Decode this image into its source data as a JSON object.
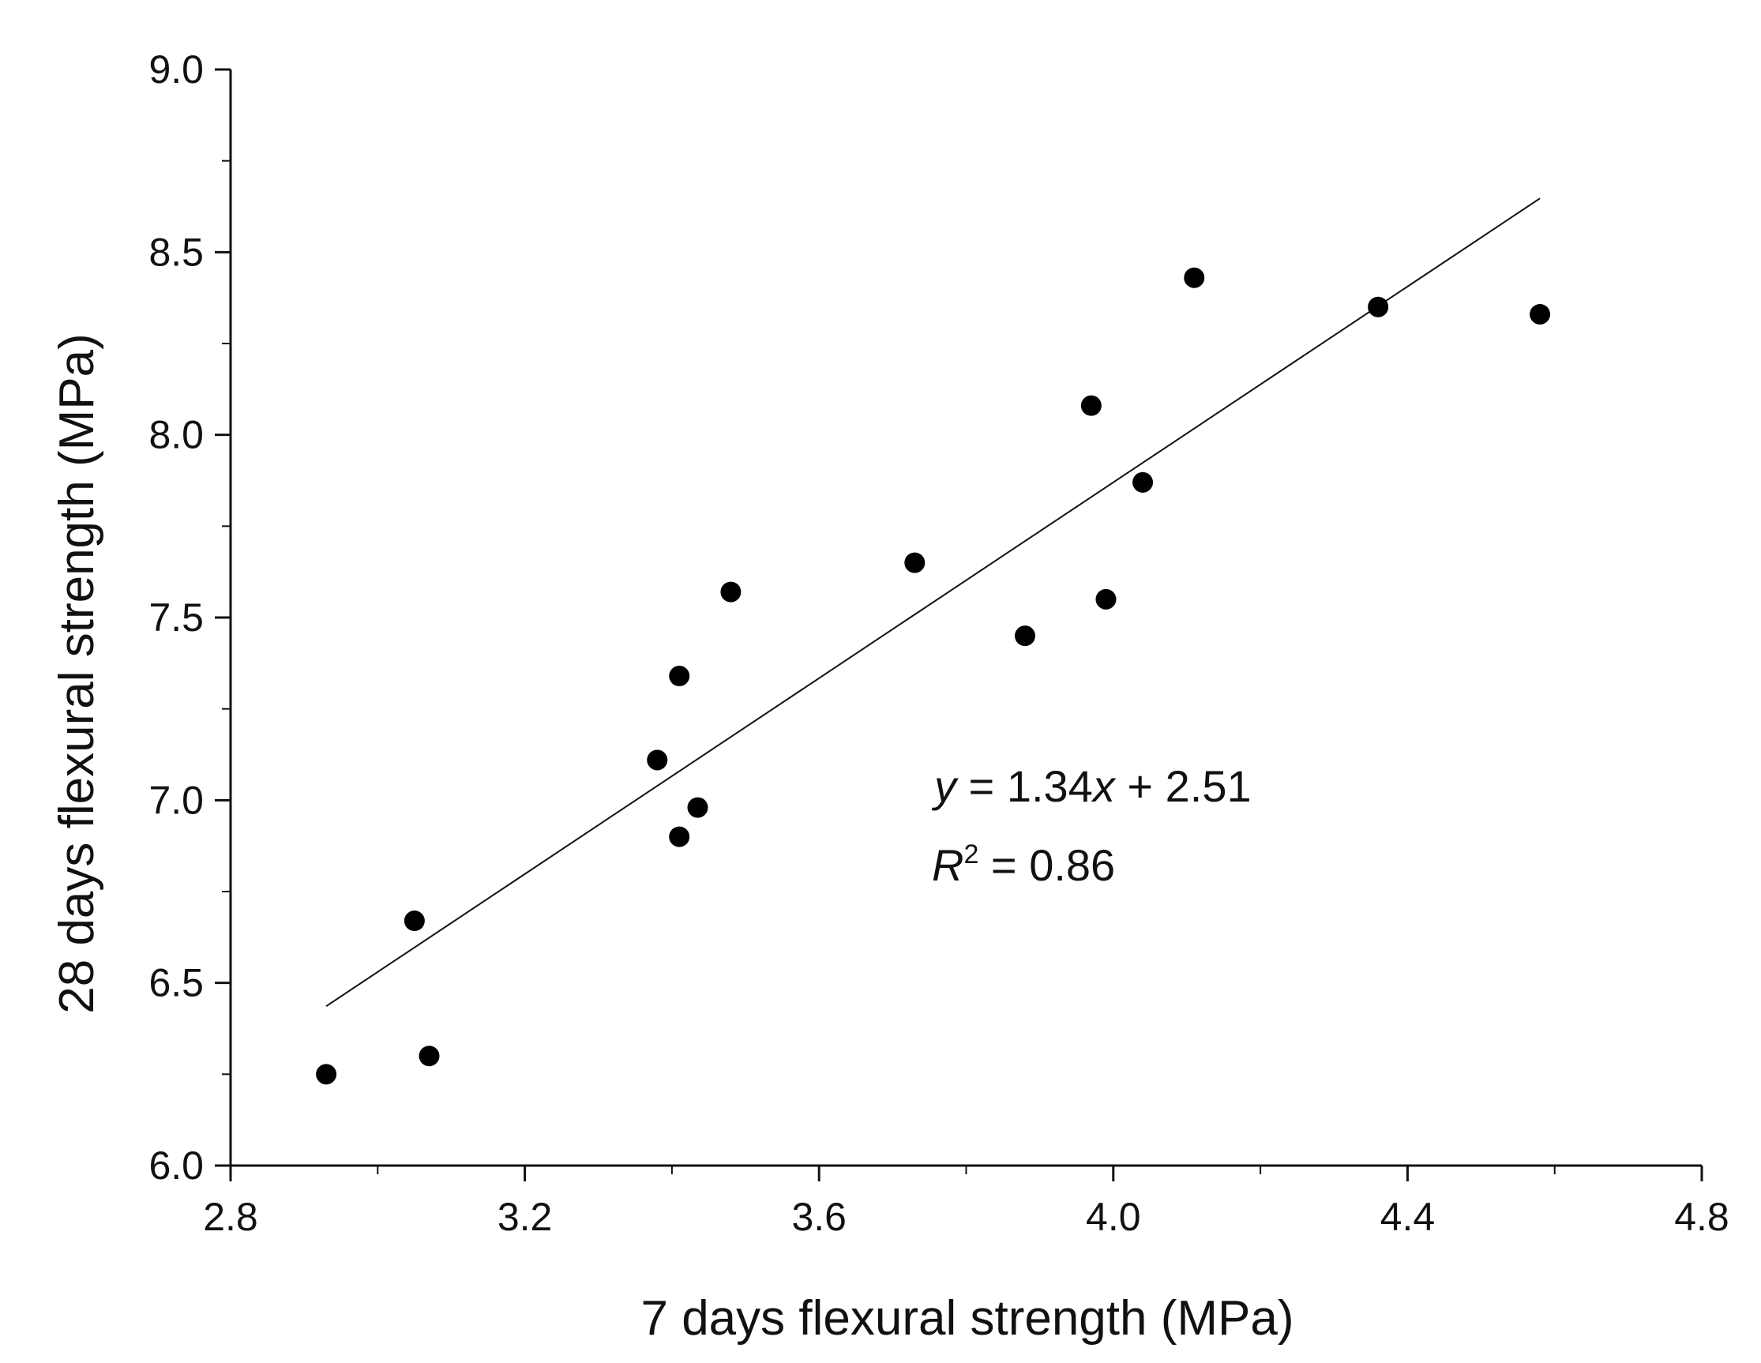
{
  "chart_data": {
    "type": "scatter",
    "title": "",
    "xlabel": "7 days flexural strength (MPa)",
    "ylabel": "28 days flexural strength (MPa)",
    "xlim": [
      2.8,
      4.8
    ],
    "ylim": [
      6.0,
      9.0
    ],
    "xticks": [
      "2.8",
      "3.2",
      "3.6",
      "4.0",
      "4.4",
      "4.8"
    ],
    "yticks": [
      "6.0",
      "6.5",
      "7.0",
      "7.5",
      "8.0",
      "8.5",
      "9.0"
    ],
    "grid": false,
    "series": [
      {
        "name": "data",
        "points": [
          [
            2.93,
            6.25
          ],
          [
            3.07,
            6.3
          ],
          [
            3.05,
            6.67
          ],
          [
            3.38,
            7.11
          ],
          [
            3.41,
            6.9
          ],
          [
            3.435,
            6.98
          ],
          [
            3.41,
            7.34
          ],
          [
            3.48,
            7.57
          ],
          [
            3.73,
            7.65
          ],
          [
            3.88,
            7.45
          ],
          [
            3.97,
            8.08
          ],
          [
            3.99,
            7.55
          ],
          [
            4.04,
            7.87
          ],
          [
            4.11,
            8.43
          ],
          [
            4.36,
            8.35
          ],
          [
            4.58,
            8.33
          ]
        ]
      }
    ],
    "fit": {
      "slope": 1.34,
      "intercept": 2.51,
      "x_range": [
        2.93,
        4.58
      ],
      "equation_prefix": "y",
      "equation_text": " = 1.34",
      "equation_var": "x",
      "equation_suffix": " + 2.51",
      "r2_letter": "R",
      "r2_exp": "2",
      "r2_text": " = 0.86"
    }
  }
}
